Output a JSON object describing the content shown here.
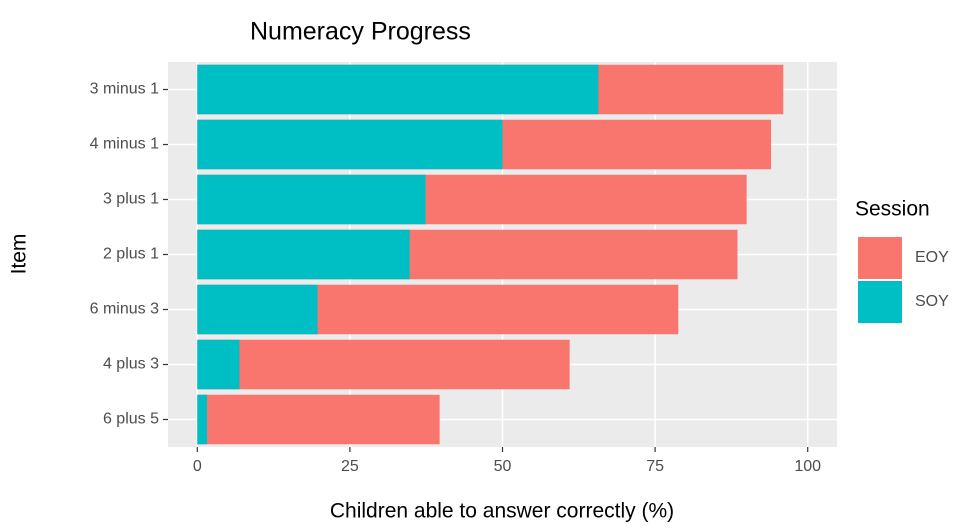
{
  "chart_data": {
    "type": "bar",
    "orientation": "horizontal",
    "overlap": true,
    "title": "Numeracy Progress",
    "x_label": "Children able to answer correctly (%)",
    "y_label": "Item",
    "legend_title": "Session",
    "categories": [
      "3 minus 1",
      "4 minus 1",
      "3 plus 1",
      "2 plus 1",
      "6 minus 3",
      "4 plus 3",
      "6 plus 5"
    ],
    "series": [
      {
        "name": "EOY",
        "color": "#F8766D",
        "values": [
          96,
          94,
          90,
          88.5,
          78.8,
          61,
          39.7
        ]
      },
      {
        "name": "SOY",
        "color": "#00BFC4",
        "values": [
          65.7,
          50,
          37.4,
          34.8,
          19.7,
          6.9,
          1.6
        ]
      }
    ],
    "xlim": [
      -4.8,
      104.8
    ],
    "xticks": [
      0,
      25,
      50,
      75,
      100
    ],
    "grid": true
  }
}
